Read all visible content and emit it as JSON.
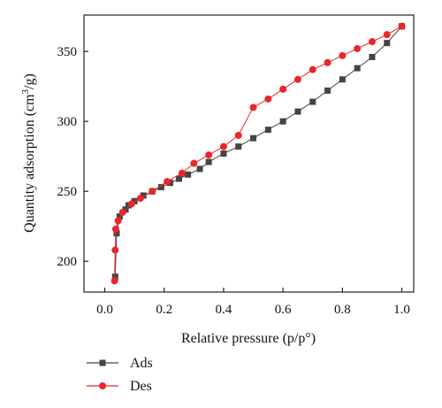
{
  "chart_data": {
    "type": "line",
    "xlabel": "Relative pressure (p/p°)",
    "ylabel_main": "Quantity adsorption (cm",
    "ylabel_sup": "3",
    "ylabel_tail": "/g)",
    "xlim": [
      -0.07,
      1.04
    ],
    "ylim": [
      178,
      376
    ],
    "x_ticks": [
      "0.0",
      "0.2",
      "0.4",
      "0.6",
      "0.8",
      "1.0"
    ],
    "x_tick_values": [
      0.0,
      0.2,
      0.4,
      0.6,
      0.8,
      1.0
    ],
    "y_ticks": [
      "200",
      "250",
      "300",
      "350"
    ],
    "y_tick_values": [
      200,
      250,
      300,
      350
    ],
    "legend_position": "bottom-left",
    "series": [
      {
        "name": "Ads",
        "marker": "square",
        "color": "#444444",
        "x": [
          0.035,
          0.04,
          0.05,
          0.07,
          0.08,
          0.1,
          0.13,
          0.16,
          0.19,
          0.22,
          0.25,
          0.28,
          0.32,
          0.35,
          0.4,
          0.45,
          0.5,
          0.55,
          0.6,
          0.65,
          0.7,
          0.75,
          0.8,
          0.85,
          0.9,
          0.95,
          1.0
        ],
        "y": [
          189,
          220,
          232,
          237,
          240,
          243,
          247,
          250,
          253,
          256,
          259,
          262,
          266,
          271,
          277,
          282,
          288,
          294,
          300,
          307,
          314,
          322,
          330,
          338,
          346,
          356,
          368
        ]
      },
      {
        "name": "Des",
        "marker": "circle",
        "color": "#e8282b",
        "x": [
          1.0,
          0.95,
          0.9,
          0.85,
          0.8,
          0.75,
          0.7,
          0.65,
          0.6,
          0.55,
          0.5,
          0.45,
          0.4,
          0.35,
          0.3,
          0.26,
          0.21,
          0.16,
          0.12,
          0.09,
          0.06,
          0.045,
          0.037,
          0.035,
          0.033
        ],
        "y": [
          368,
          362,
          357,
          352,
          347,
          342,
          337,
          330,
          323,
          316,
          310,
          290,
          282,
          276,
          270,
          263,
          257,
          250,
          245,
          241,
          235,
          229,
          223,
          208,
          186
        ]
      }
    ]
  }
}
